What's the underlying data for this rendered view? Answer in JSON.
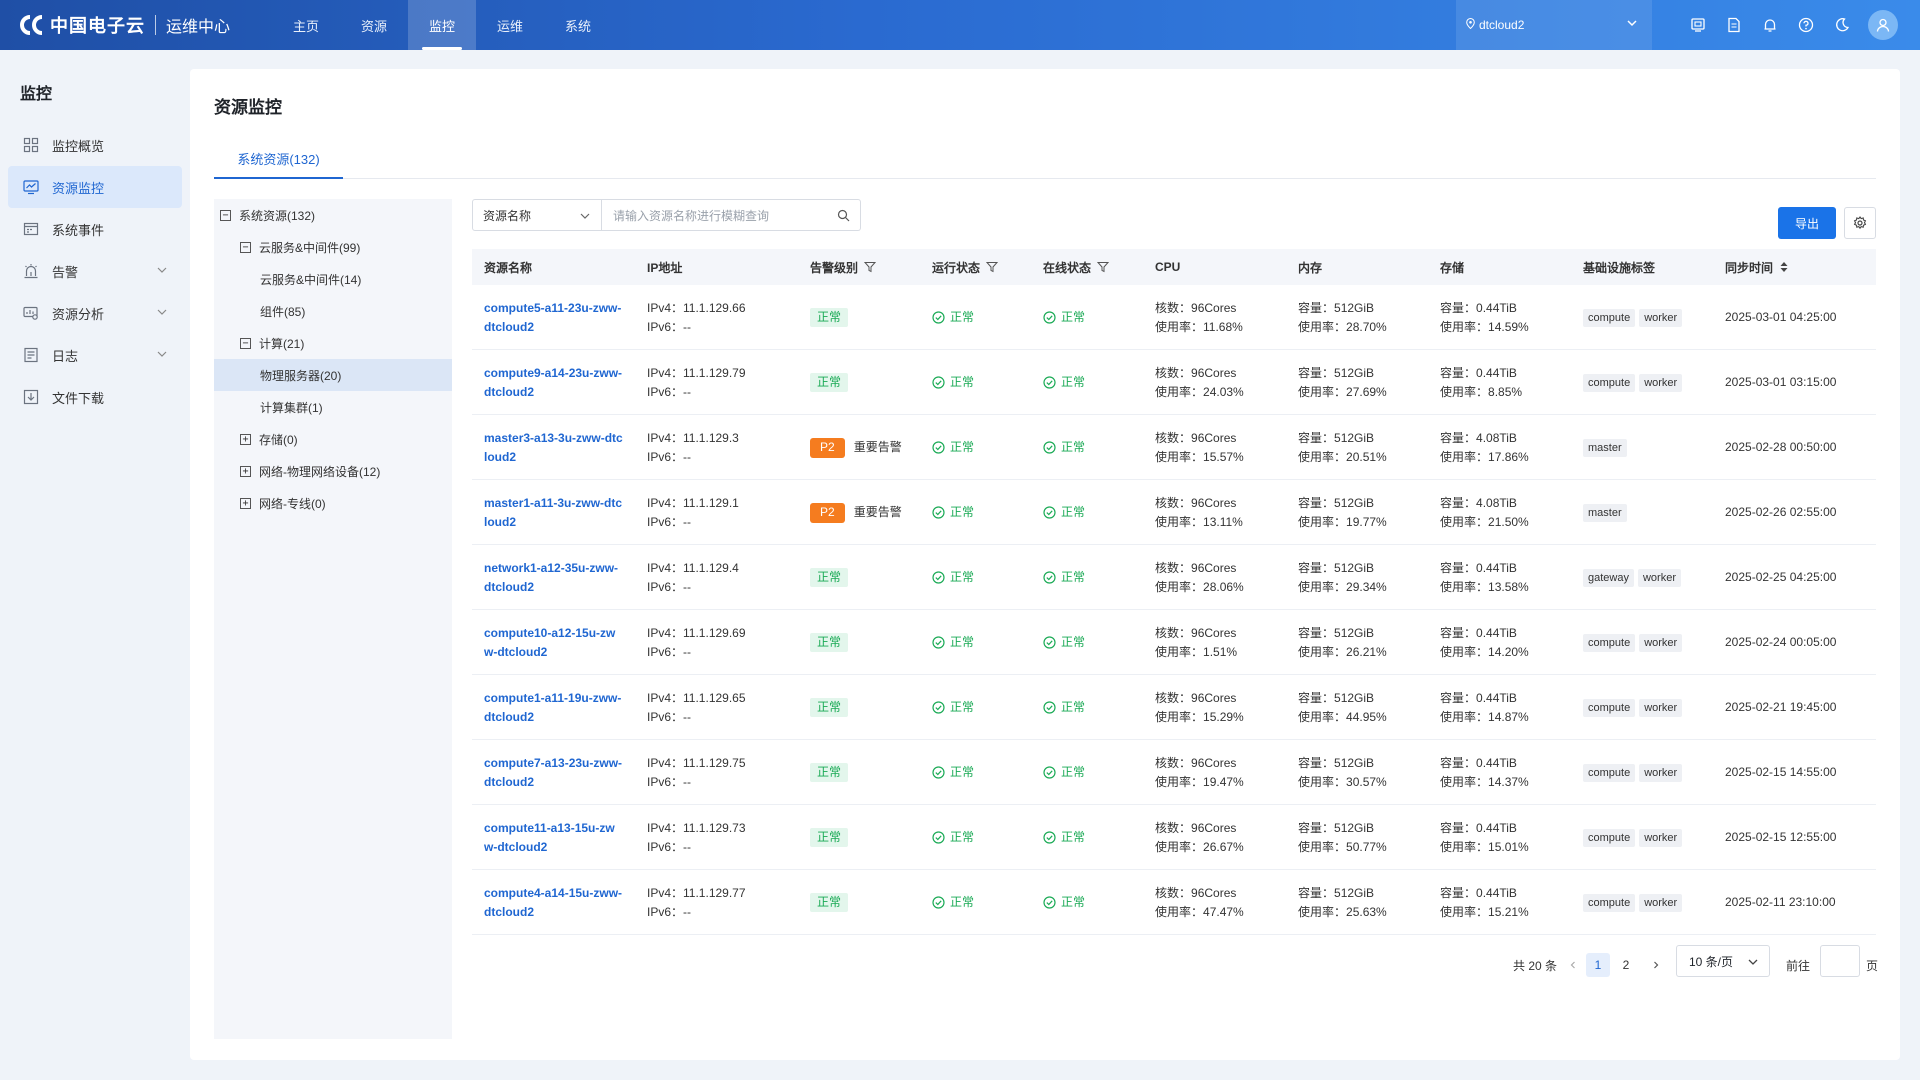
{
  "header": {
    "brand": "中国电子云",
    "product": "运维中心",
    "nav": [
      "主页",
      "资源",
      "监控",
      "运维",
      "系统"
    ],
    "active_nav": 2,
    "region": "dtcloud2",
    "icons": [
      "screen-icon",
      "document-icon",
      "bell-icon",
      "help-icon",
      "moon-icon"
    ]
  },
  "sidebar": {
    "title": "监控",
    "items": [
      {
        "label": "监控概览",
        "icon": "grid-icon",
        "active": false,
        "expandable": false
      },
      {
        "label": "资源监控",
        "icon": "monitor-chart-icon",
        "active": true,
        "expandable": false
      },
      {
        "label": "系统事件",
        "icon": "event-icon",
        "active": false,
        "expandable": false
      },
      {
        "label": "告警",
        "icon": "alarm-icon",
        "active": false,
        "expandable": true
      },
      {
        "label": "资源分析",
        "icon": "analysis-icon",
        "active": false,
        "expandable": true
      },
      {
        "label": "日志",
        "icon": "log-icon",
        "active": false,
        "expandable": true
      },
      {
        "label": "文件下载",
        "icon": "download-icon",
        "active": false,
        "expandable": false
      }
    ]
  },
  "page": {
    "title": "资源监控",
    "tab": "系统资源(132)"
  },
  "tree": [
    {
      "label": "系统资源(132)",
      "box": "−"
    },
    {
      "label": "云服务&中间件(99)",
      "box": "−"
    },
    {
      "label": "云服务&中间件(14)",
      "box": ""
    },
    {
      "label": "组件(85)",
      "box": ""
    },
    {
      "label": "计算(21)",
      "box": "−"
    },
    {
      "label": "物理服务器(20)",
      "box": ""
    },
    {
      "label": "计算集群(1)",
      "box": ""
    },
    {
      "label": "存储(0)",
      "box": "+"
    },
    {
      "label": "网络-物理网络设备(12)",
      "box": "+"
    },
    {
      "label": "网络-专线(0)",
      "box": "+"
    }
  ],
  "search": {
    "field": "资源名称",
    "placeholder": "请输入资源名称进行模糊查询"
  },
  "toolbar": {
    "export_label": "导出"
  },
  "table": {
    "columns": [
      "资源名称",
      "IP地址",
      "告警级别",
      "运行状态",
      "在线状态",
      "CPU",
      "内存",
      "存储",
      "基础设施标签",
      "同步时间"
    ],
    "ipv4_prefix": "IPv4：",
    "ipv6_prefix": "IPv6：",
    "cores_prefix": "核数：",
    "usage_prefix": "使用率：",
    "capacity_prefix": "容量：",
    "rows": [
      {
        "name": "compute5-a11-23u-zww-dtcloud2",
        "ipv4": "11.1.129.66",
        "ipv6": "--",
        "alarm": "正常",
        "alarm_level": "",
        "run": "正常",
        "online": "正常",
        "cores": "96Cores",
        "cpu_usage": "11.68%",
        "mem": "512GiB",
        "mem_usage": "28.70%",
        "disk": "0.44TiB",
        "disk_usage": "14.59%",
        "tags": [
          "compute",
          "worker"
        ],
        "time": "2025-03-01 04:25:00"
      },
      {
        "name": "compute9-a14-23u-zww-dtcloud2",
        "ipv4": "11.1.129.79",
        "ipv6": "--",
        "alarm": "正常",
        "alarm_level": "",
        "run": "正常",
        "online": "正常",
        "cores": "96Cores",
        "cpu_usage": "24.03%",
        "mem": "512GiB",
        "mem_usage": "27.69%",
        "disk": "0.44TiB",
        "disk_usage": "8.85%",
        "tags": [
          "compute",
          "worker"
        ],
        "time": "2025-03-01 03:15:00"
      },
      {
        "name": "master3-a13-3u-zww-dtcloud2",
        "ipv4": "11.1.129.3",
        "ipv6": "--",
        "alarm": "重要告警",
        "alarm_level": "P2",
        "run": "正常",
        "online": "正常",
        "cores": "96Cores",
        "cpu_usage": "15.57%",
        "mem": "512GiB",
        "mem_usage": "20.51%",
        "disk": "4.08TiB",
        "disk_usage": "17.86%",
        "tags": [
          "master"
        ],
        "time": "2025-02-28 00:50:00"
      },
      {
        "name": "master1-a11-3u-zww-dtcloud2",
        "ipv4": "11.1.129.1",
        "ipv6": "--",
        "alarm": "重要告警",
        "alarm_level": "P2",
        "run": "正常",
        "online": "正常",
        "cores": "96Cores",
        "cpu_usage": "13.11%",
        "mem": "512GiB",
        "mem_usage": "19.77%",
        "disk": "4.08TiB",
        "disk_usage": "21.50%",
        "tags": [
          "master"
        ],
        "time": "2025-02-26 02:55:00"
      },
      {
        "name": "network1-a12-35u-zww-dtcloud2",
        "ipv4": "11.1.129.4",
        "ipv6": "--",
        "alarm": "正常",
        "alarm_level": "",
        "run": "正常",
        "online": "正常",
        "cores": "96Cores",
        "cpu_usage": "28.06%",
        "mem": "512GiB",
        "mem_usage": "29.34%",
        "disk": "0.44TiB",
        "disk_usage": "13.58%",
        "tags": [
          "gateway",
          "worker"
        ],
        "time": "2025-02-25 04:25:00"
      },
      {
        "name": "compute10-a12-15u-zww-dtcloud2",
        "ipv4": "11.1.129.69",
        "ipv6": "--",
        "alarm": "正常",
        "alarm_level": "",
        "run": "正常",
        "online": "正常",
        "cores": "96Cores",
        "cpu_usage": "1.51%",
        "mem": "512GiB",
        "mem_usage": "26.21%",
        "disk": "0.44TiB",
        "disk_usage": "14.20%",
        "tags": [
          "compute",
          "worker"
        ],
        "time": "2025-02-24 00:05:00"
      },
      {
        "name": "compute1-a11-19u-zww-dtcloud2",
        "ipv4": "11.1.129.65",
        "ipv6": "--",
        "alarm": "正常",
        "alarm_level": "",
        "run": "正常",
        "online": "正常",
        "cores": "96Cores",
        "cpu_usage": "15.29%",
        "mem": "512GiB",
        "mem_usage": "44.95%",
        "disk": "0.44TiB",
        "disk_usage": "14.87%",
        "tags": [
          "compute",
          "worker"
        ],
        "time": "2025-02-21 19:45:00"
      },
      {
        "name": "compute7-a13-23u-zww-dtcloud2",
        "ipv4": "11.1.129.75",
        "ipv6": "--",
        "alarm": "正常",
        "alarm_level": "",
        "run": "正常",
        "online": "正常",
        "cores": "96Cores",
        "cpu_usage": "19.47%",
        "mem": "512GiB",
        "mem_usage": "30.57%",
        "disk": "0.44TiB",
        "disk_usage": "14.37%",
        "tags": [
          "compute",
          "worker"
        ],
        "time": "2025-02-15 14:55:00"
      },
      {
        "name": "compute11-a13-15u-zww-dtcloud2",
        "ipv4": "11.1.129.73",
        "ipv6": "--",
        "alarm": "正常",
        "alarm_level": "",
        "run": "正常",
        "online": "正常",
        "cores": "96Cores",
        "cpu_usage": "26.67%",
        "mem": "512GiB",
        "mem_usage": "50.77%",
        "disk": "0.44TiB",
        "disk_usage": "15.01%",
        "tags": [
          "compute",
          "worker"
        ],
        "time": "2025-02-15 12:55:00"
      },
      {
        "name": "compute4-a14-15u-zww-dtcloud2",
        "ipv4": "11.1.129.77",
        "ipv6": "--",
        "alarm": "正常",
        "alarm_level": "",
        "run": "正常",
        "online": "正常",
        "cores": "96Cores",
        "cpu_usage": "47.47%",
        "mem": "512GiB",
        "mem_usage": "25.63%",
        "disk": "0.44TiB",
        "disk_usage": "15.21%",
        "tags": [
          "compute",
          "worker"
        ],
        "time": "2025-02-11 23:10:00"
      }
    ]
  },
  "pagination": {
    "total": "共 20 条",
    "pages": [
      "1",
      "2"
    ],
    "current": "1",
    "page_size": "10 条/页",
    "goto": "前往",
    "page_suffix": "页"
  },
  "colors": {
    "primary": "#1a73e8",
    "ok_green": "#1aaa55",
    "p2_orange": "#f57c1f"
  }
}
